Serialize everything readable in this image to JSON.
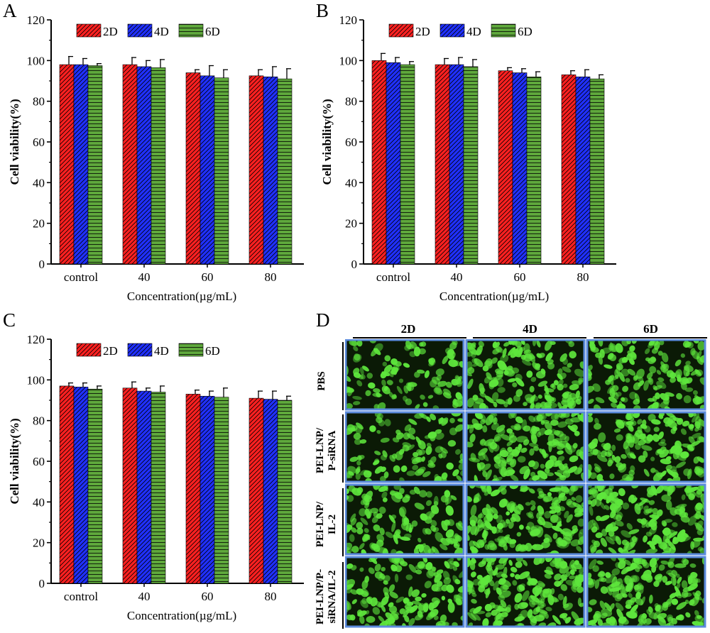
{
  "panels": [
    {
      "id": "chart-a",
      "label": "A"
    },
    {
      "id": "chart-b",
      "label": "B"
    },
    {
      "id": "chart-c",
      "label": "C"
    },
    {
      "id": "panel-d",
      "label": "D"
    }
  ],
  "chart_data": [
    {
      "panel": "A",
      "type": "bar",
      "title": "",
      "xlabel": "Concentration(µg/mL)",
      "ylabel": "Cell viability(%)",
      "ylim": [
        0,
        120
      ],
      "yticks": [
        0,
        20,
        40,
        60,
        80,
        100,
        120
      ],
      "categories": [
        "control",
        "40",
        "60",
        "80"
      ],
      "legend_position": "top-left",
      "series": [
        {
          "name": "2D",
          "color": "#ff1e1e",
          "pattern": "diagonal",
          "values": [
            98,
            98,
            94,
            92.5
          ],
          "errors": [
            4,
            3.5,
            1.5,
            3
          ]
        },
        {
          "name": "4D",
          "color": "#1e2cff",
          "pattern": "diagonal",
          "values": [
            98,
            97,
            92.5,
            92
          ],
          "errors": [
            3,
            3,
            5,
            5
          ]
        },
        {
          "name": "6D",
          "color": "#5fa83c",
          "pattern": "horizontal",
          "values": [
            97.5,
            96.5,
            91.5,
            91
          ],
          "errors": [
            1,
            4,
            4,
            5
          ]
        }
      ]
    },
    {
      "panel": "B",
      "type": "bar",
      "title": "",
      "xlabel": "Concentration(µg/mL)",
      "ylabel": "Cell viability(%)",
      "ylim": [
        0,
        120
      ],
      "yticks": [
        0,
        20,
        40,
        60,
        80,
        100,
        120
      ],
      "categories": [
        "control",
        "40",
        "60",
        "80"
      ],
      "legend_position": "top-left",
      "series": [
        {
          "name": "2D",
          "color": "#ff1e1e",
          "pattern": "diagonal",
          "values": [
            100,
            98,
            95,
            93
          ],
          "errors": [
            3.5,
            3,
            1.5,
            2
          ]
        },
        {
          "name": "4D",
          "color": "#1e2cff",
          "pattern": "diagonal",
          "values": [
            99,
            98,
            94,
            92
          ],
          "errors": [
            2.5,
            3.5,
            2,
            3.5
          ]
        },
        {
          "name": "6D",
          "color": "#5fa83c",
          "pattern": "horizontal",
          "values": [
            98,
            97,
            92,
            91
          ],
          "errors": [
            1.5,
            3.5,
            2.5,
            2
          ]
        }
      ]
    },
    {
      "panel": "C",
      "type": "bar",
      "title": "",
      "xlabel": "Concentration(µg/mL)",
      "ylabel": "Cell viability(%)",
      "ylim": [
        0,
        120
      ],
      "yticks": [
        0,
        20,
        40,
        60,
        80,
        100,
        120
      ],
      "categories": [
        "control",
        "40",
        "60",
        "80"
      ],
      "legend_position": "top-left",
      "series": [
        {
          "name": "2D",
          "color": "#ff1e1e",
          "pattern": "diagonal",
          "values": [
            97,
            96,
            93,
            91
          ],
          "errors": [
            1.5,
            3,
            2,
            3.5
          ]
        },
        {
          "name": "4D",
          "color": "#1e2cff",
          "pattern": "diagonal",
          "values": [
            96.5,
            94.5,
            92,
            90.5
          ],
          "errors": [
            2,
            1.5,
            2.5,
            4
          ]
        },
        {
          "name": "6D",
          "color": "#5fa83c",
          "pattern": "horizontal",
          "values": [
            95.5,
            94,
            91.5,
            90
          ],
          "errors": [
            1.5,
            3,
            4.5,
            2
          ]
        }
      ]
    }
  ],
  "microscopy": {
    "columns": [
      "2D",
      "4D",
      "6D"
    ],
    "rows": [
      "PBS",
      "PEI-LNP/\nP-siRNA",
      "PEI-LNP/\nIL-2",
      "PEI-LNP/P-\nsiRNA/IL-2"
    ],
    "cell_color": "#5ee63c",
    "background_color": "#0b1a06",
    "border_color": "#5b8bdc",
    "density": [
      [
        0.35,
        0.7,
        0.6
      ],
      [
        0.35,
        0.75,
        0.7
      ],
      [
        0.55,
        0.85,
        0.85
      ],
      [
        0.6,
        0.9,
        0.85
      ]
    ]
  }
}
